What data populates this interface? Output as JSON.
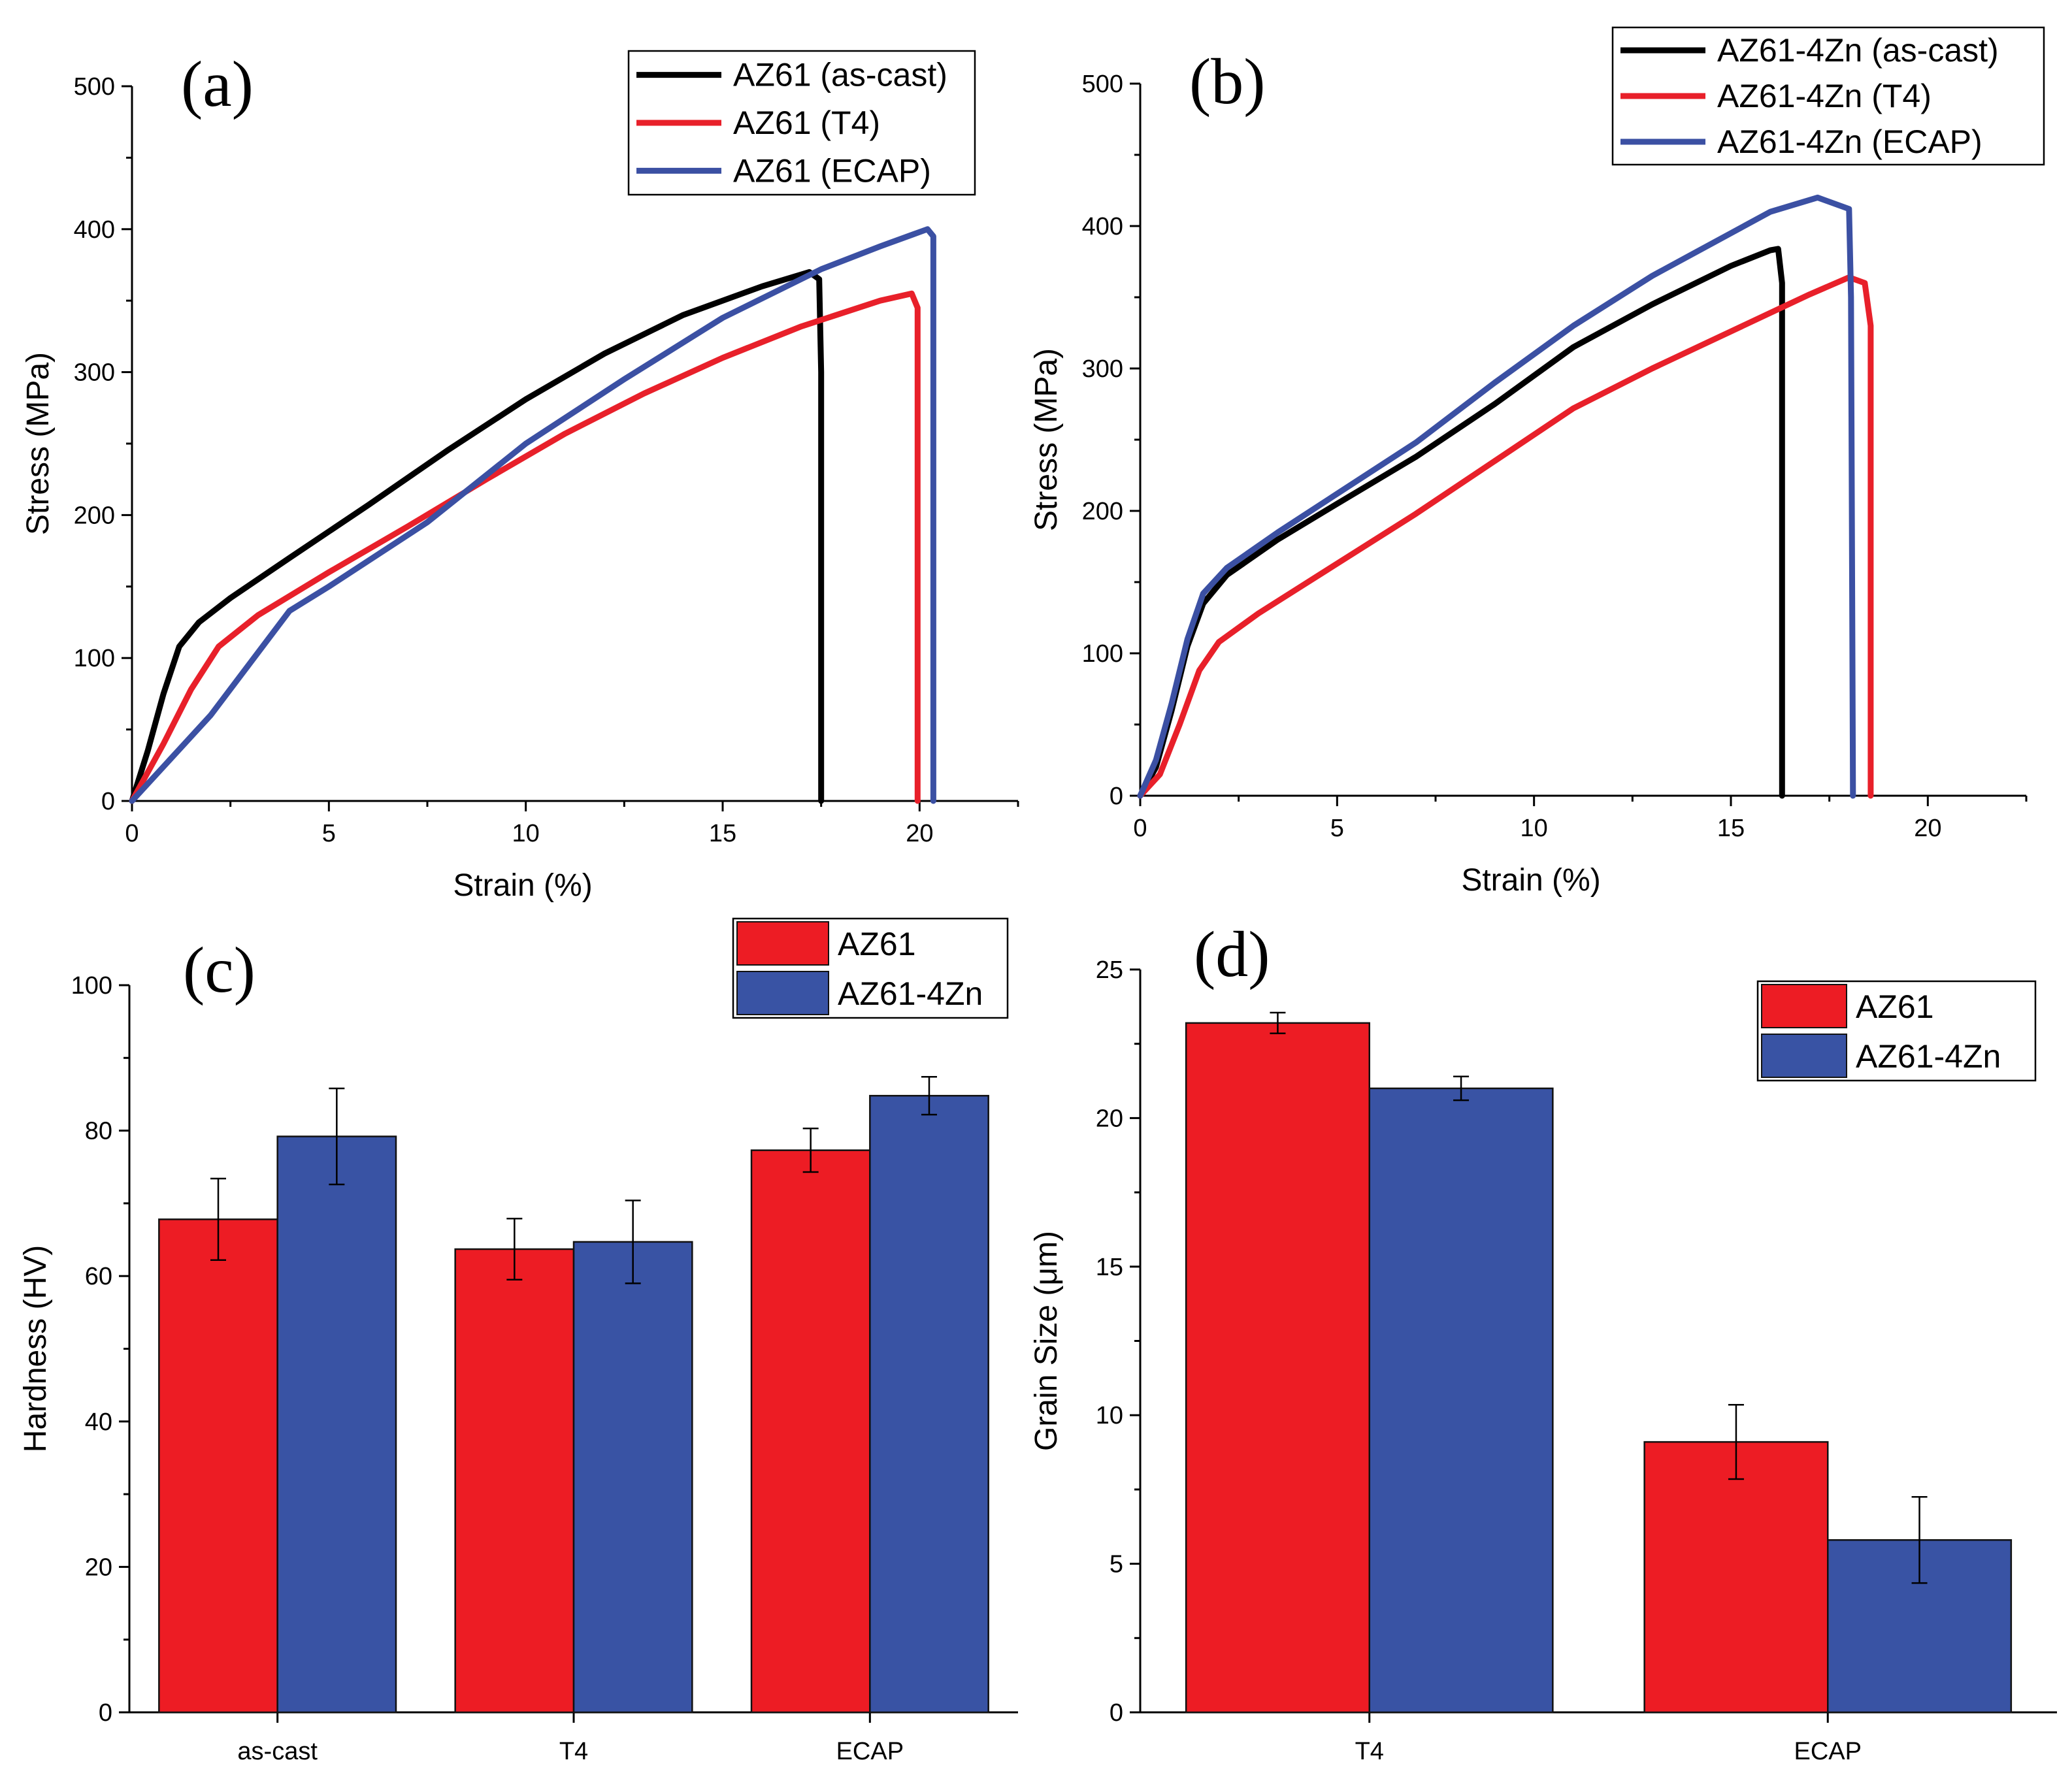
{
  "chart_data": [
    {
      "id": "a",
      "panel_label": "(a)",
      "type": "line",
      "xlabel": "Strain (%)",
      "ylabel": "Stress (MPa)",
      "xlim": [
        0,
        22.5
      ],
      "ylim": [
        0,
        500
      ],
      "xticks": [
        0,
        5,
        10,
        15,
        20
      ],
      "yticks": [
        0,
        100,
        200,
        300,
        400,
        500
      ],
      "legend_position": "top-right",
      "series": [
        {
          "name": "AZ61 (as-cast)",
          "color": "#000000",
          "points": [
            [
              0,
              0
            ],
            [
              0.4,
              35
            ],
            [
              0.8,
              75
            ],
            [
              1.2,
              108
            ],
            [
              1.7,
              125
            ],
            [
              2.5,
              142
            ],
            [
              4,
              170
            ],
            [
              6,
              207
            ],
            [
              8,
              245
            ],
            [
              10,
              281
            ],
            [
              12,
              313
            ],
            [
              14,
              340
            ],
            [
              16,
              360
            ],
            [
              17.2,
              370
            ],
            [
              17.45,
              365
            ],
            [
              17.5,
              300
            ],
            [
              17.5,
              0
            ]
          ]
        },
        {
          "name": "AZ61 (T4)",
          "color": "#e8202a",
          "points": [
            [
              0,
              0
            ],
            [
              0.8,
              40
            ],
            [
              1.5,
              78
            ],
            [
              2.2,
              108
            ],
            [
              3.2,
              130
            ],
            [
              5,
              160
            ],
            [
              7,
              192
            ],
            [
              9,
              225
            ],
            [
              11,
              257
            ],
            [
              13,
              285
            ],
            [
              15,
              310
            ],
            [
              17,
              332
            ],
            [
              19,
              350
            ],
            [
              19.8,
              355
            ],
            [
              19.95,
              345
            ],
            [
              19.95,
              280
            ],
            [
              19.95,
              0
            ]
          ]
        },
        {
          "name": "AZ61 (ECAP)",
          "color": "#3b50a3",
          "points": [
            [
              0,
              0
            ],
            [
              2,
              60
            ],
            [
              4,
              133
            ],
            [
              5,
              150
            ],
            [
              7.5,
              195
            ],
            [
              10,
              250
            ],
            [
              12.5,
              295
            ],
            [
              15,
              338
            ],
            [
              17.5,
              372
            ],
            [
              19,
              388
            ],
            [
              20,
              398
            ],
            [
              20.2,
              400
            ],
            [
              20.35,
              395
            ],
            [
              20.35,
              320
            ],
            [
              20.35,
              0
            ]
          ]
        }
      ]
    },
    {
      "id": "b",
      "panel_label": "(b)",
      "type": "line",
      "xlabel": "Strain (%)",
      "ylabel": "Stress (MPa)",
      "xlim": [
        0,
        22.5
      ],
      "ylim": [
        0,
        500
      ],
      "xticks": [
        0,
        5,
        10,
        15,
        20
      ],
      "yticks": [
        0,
        100,
        200,
        300,
        400,
        500
      ],
      "legend_position": "top-right",
      "series": [
        {
          "name": "AZ61-4Zn (as-cast)",
          "color": "#000000",
          "points": [
            [
              0,
              0
            ],
            [
              0.4,
              20
            ],
            [
              0.8,
              60
            ],
            [
              1.2,
              105
            ],
            [
              1.6,
              135
            ],
            [
              2.2,
              155
            ],
            [
              3.5,
              180
            ],
            [
              5,
              205
            ],
            [
              7,
              238
            ],
            [
              9,
              275
            ],
            [
              11,
              315
            ],
            [
              13,
              345
            ],
            [
              15,
              372
            ],
            [
              16,
              383
            ],
            [
              16.2,
              384
            ],
            [
              16.3,
              360
            ],
            [
              16.3,
              0
            ]
          ]
        },
        {
          "name": "AZ61-4Zn (T4)",
          "color": "#e8202a",
          "points": [
            [
              0,
              0
            ],
            [
              0.5,
              15
            ],
            [
              1,
              50
            ],
            [
              1.5,
              88
            ],
            [
              2,
              108
            ],
            [
              3,
              128
            ],
            [
              5,
              163
            ],
            [
              7,
              198
            ],
            [
              9,
              235
            ],
            [
              11,
              272
            ],
            [
              13,
              300
            ],
            [
              15,
              326
            ],
            [
              17,
              352
            ],
            [
              18,
              364
            ],
            [
              18.4,
              360
            ],
            [
              18.55,
              330
            ],
            [
              18.55,
              0
            ]
          ]
        },
        {
          "name": "AZ61-4Zn (ECAP)",
          "color": "#3b50a3",
          "points": [
            [
              0,
              0
            ],
            [
              0.4,
              25
            ],
            [
              0.8,
              65
            ],
            [
              1.2,
              110
            ],
            [
              1.6,
              142
            ],
            [
              2.2,
              160
            ],
            [
              3.5,
              185
            ],
            [
              5,
              212
            ],
            [
              7,
              248
            ],
            [
              9,
              290
            ],
            [
              11,
              330
            ],
            [
              13,
              365
            ],
            [
              15,
              395
            ],
            [
              16,
              410
            ],
            [
              17.2,
              420
            ],
            [
              18,
              412
            ],
            [
              18.05,
              350
            ],
            [
              18.1,
              0
            ]
          ]
        }
      ]
    },
    {
      "id": "c",
      "panel_label": "(c)",
      "type": "bar",
      "xlabel": "",
      "ylabel": "Hardness (HV)",
      "ylim": [
        0,
        100
      ],
      "yticks": [
        0,
        20,
        40,
        60,
        80,
        100
      ],
      "categories": [
        "as-cast",
        "T4",
        "ECAP"
      ],
      "legend_position": "top-right",
      "series": [
        {
          "name": "AZ61",
          "color": "#ed1c24",
          "values": [
            67.8,
            63.7,
            77.3
          ],
          "errors": [
            5.6,
            4.2,
            3.0
          ]
        },
        {
          "name": "AZ61-4Zn",
          "color": "#3953a4",
          "values": [
            79.2,
            64.7,
            84.8
          ],
          "errors": [
            6.6,
            5.7,
            2.6
          ]
        }
      ]
    },
    {
      "id": "d",
      "panel_label": "(d)",
      "type": "bar",
      "xlabel": "",
      "ylabel": "Grain Size (μm)",
      "ylim": [
        0,
        25
      ],
      "yticks": [
        0,
        5,
        10,
        15,
        20,
        25
      ],
      "categories": [
        "T4",
        "ECAP"
      ],
      "legend_position": "top-right",
      "series": [
        {
          "name": "AZ61",
          "color": "#ed1c24",
          "values": [
            23.2,
            9.1
          ],
          "errors": [
            0.35,
            1.25
          ]
        },
        {
          "name": "AZ61-4Zn",
          "color": "#3953a4",
          "values": [
            21.0,
            5.8
          ],
          "errors": [
            0.4,
            1.45
          ]
        }
      ]
    }
  ]
}
